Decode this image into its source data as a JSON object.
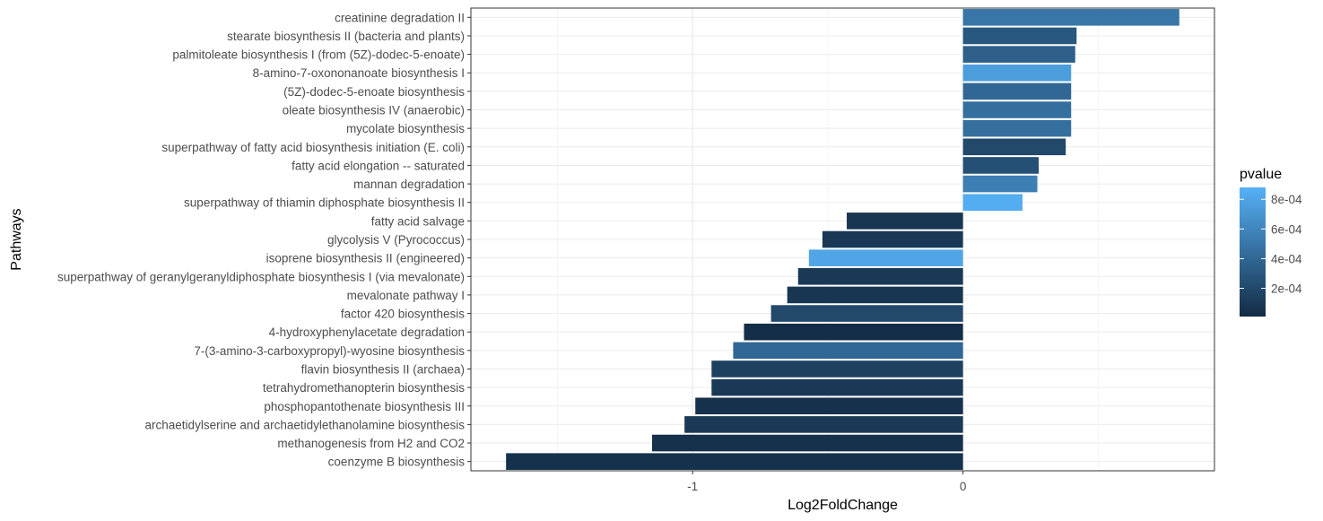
{
  "chart_data": {
    "type": "bar",
    "orientation": "horizontal",
    "xlabel": "Log2FoldChange",
    "ylabel": "Pathways",
    "xlim": [
      -1.82,
      0.93
    ],
    "xticks": [
      -1,
      0
    ],
    "xtick_labels": [
      "-1",
      "0"
    ],
    "grid": true,
    "legend": {
      "title": "pvalue",
      "placement": "right",
      "range": [
        1e-05,
        0.00088
      ],
      "ticks": [
        0.0002,
        0.0004,
        0.0006,
        0.0008
      ],
      "tick_labels": [
        "2e-04",
        "4e-04",
        "6e-04",
        "8e-04"
      ],
      "color_low": "#132B43",
      "color_high": "#56B1F7"
    },
    "categories": [
      "creatinine degradation II",
      "stearate biosynthesis II (bacteria and plants)",
      "palmitoleate biosynthesis I (from (5Z)-dodec-5-enoate)",
      "8-amino-7-oxononanoate biosynthesis I",
      "(5Z)-dodec-5-enoate biosynthesis",
      "oleate biosynthesis IV (anaerobic)",
      "mycolate biosynthesis",
      "superpathway of fatty acid biosynthesis initiation (E. coli)",
      "fatty acid elongation -- saturated",
      "mannan degradation",
      "superpathway of thiamin diphosphate biosynthesis II",
      "fatty acid salvage",
      "glycolysis V (Pyrococcus)",
      "isoprene biosynthesis II (engineered)",
      "superpathway of geranylgeranyldiphosphate biosynthesis I (via mevalonate)",
      "mevalonate pathway I",
      "factor 420 biosynthesis",
      "4-hydroxyphenylacetate degradation",
      "7-(3-amino-3-carboxypropyl)-wyosine biosynthesis",
      "flavin biosynthesis II (archaea)",
      "tetrahydromethanopterin biosynthesis",
      "phosphopantothenate biosynthesis III",
      "archaetidylserine and archaetidylethanolamine biosynthesis",
      "methanogenesis from H2 and CO2",
      "coenzyme B biosynthesis"
    ],
    "values": [
      0.8,
      0.42,
      0.415,
      0.4,
      0.4,
      0.4,
      0.4,
      0.38,
      0.28,
      0.275,
      0.22,
      -0.43,
      -0.52,
      -0.57,
      -0.61,
      -0.65,
      -0.71,
      -0.81,
      -0.85,
      -0.93,
      -0.93,
      -0.99,
      -1.03,
      -1.15,
      -1.69
    ],
    "pvalues": [
      0.0005,
      0.0003,
      0.00035,
      0.00075,
      0.0004,
      0.00045,
      0.00045,
      0.0002,
      0.00025,
      0.00055,
      0.00085,
      8e-05,
      0.0001,
      0.0008,
      0.0001,
      8e-05,
      0.0002,
      3e-05,
      0.0004,
      0.00015,
      0.0001,
      5e-05,
      0.0001,
      5e-05,
      5e-05
    ]
  }
}
